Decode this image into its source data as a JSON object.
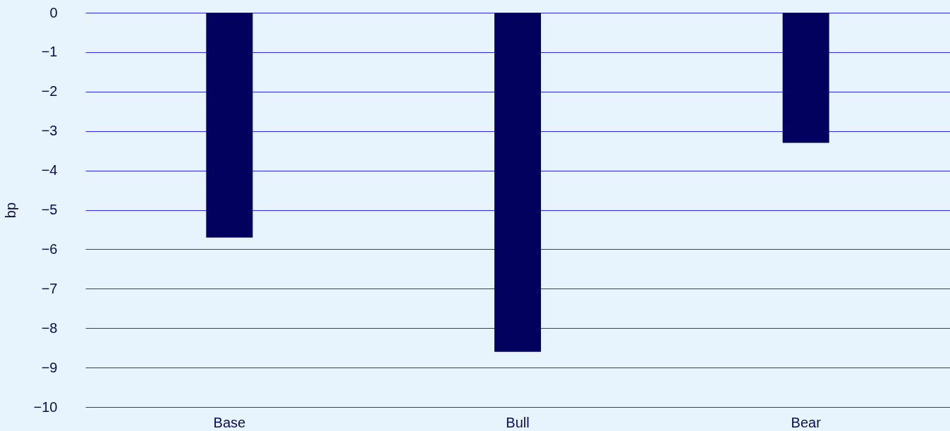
{
  "chart_data": {
    "type": "bar",
    "ylabel": "bp",
    "categories": [
      "Base",
      "Bull",
      "Bear"
    ],
    "series": [
      {
        "color": "#02025e",
        "values": [
          -5.7,
          -8.6,
          -3.3
        ]
      }
    ],
    "ylim": [
      -10,
      0
    ],
    "yticks": [
      -10,
      -9,
      -8,
      -7,
      -6,
      -5,
      -4,
      -3,
      -2,
      -1,
      0
    ],
    "grid": "y",
    "legend": false
  }
}
